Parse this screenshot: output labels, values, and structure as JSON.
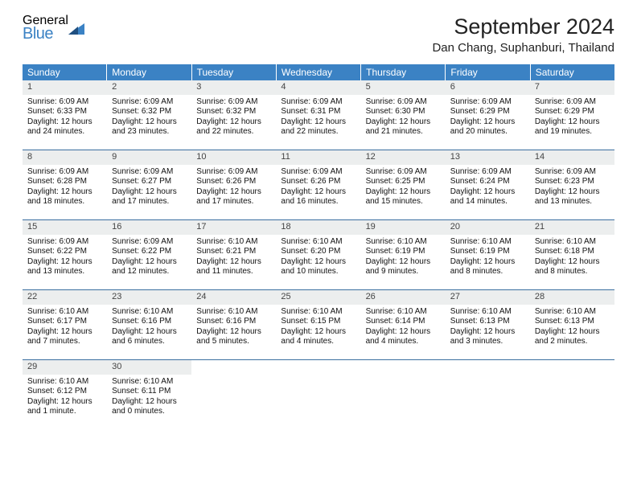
{
  "logo": {
    "general": "General",
    "blue": "Blue",
    "shape_color": "#3b82c4"
  },
  "title": "September 2024",
  "location": "Dan Chang, Suphanburi, Thailand",
  "colors": {
    "header_bg": "#3b82c4",
    "header_text": "#ffffff",
    "daynum_bg": "#eceeee",
    "week_border": "#3b6fa0",
    "body_text": "#111111"
  },
  "typography": {
    "title_fontsize": 27,
    "location_fontsize": 15,
    "dow_fontsize": 12,
    "daynum_fontsize": 11,
    "body_fontsize": 10
  },
  "days_of_week": [
    "Sunday",
    "Monday",
    "Tuesday",
    "Wednesday",
    "Thursday",
    "Friday",
    "Saturday"
  ],
  "weeks": [
    [
      {
        "n": "1",
        "sunrise": "Sunrise: 6:09 AM",
        "sunset": "Sunset: 6:33 PM",
        "day1": "Daylight: 12 hours",
        "day2": "and 24 minutes."
      },
      {
        "n": "2",
        "sunrise": "Sunrise: 6:09 AM",
        "sunset": "Sunset: 6:32 PM",
        "day1": "Daylight: 12 hours",
        "day2": "and 23 minutes."
      },
      {
        "n": "3",
        "sunrise": "Sunrise: 6:09 AM",
        "sunset": "Sunset: 6:32 PM",
        "day1": "Daylight: 12 hours",
        "day2": "and 22 minutes."
      },
      {
        "n": "4",
        "sunrise": "Sunrise: 6:09 AM",
        "sunset": "Sunset: 6:31 PM",
        "day1": "Daylight: 12 hours",
        "day2": "and 22 minutes."
      },
      {
        "n": "5",
        "sunrise": "Sunrise: 6:09 AM",
        "sunset": "Sunset: 6:30 PM",
        "day1": "Daylight: 12 hours",
        "day2": "and 21 minutes."
      },
      {
        "n": "6",
        "sunrise": "Sunrise: 6:09 AM",
        "sunset": "Sunset: 6:29 PM",
        "day1": "Daylight: 12 hours",
        "day2": "and 20 minutes."
      },
      {
        "n": "7",
        "sunrise": "Sunrise: 6:09 AM",
        "sunset": "Sunset: 6:29 PM",
        "day1": "Daylight: 12 hours",
        "day2": "and 19 minutes."
      }
    ],
    [
      {
        "n": "8",
        "sunrise": "Sunrise: 6:09 AM",
        "sunset": "Sunset: 6:28 PM",
        "day1": "Daylight: 12 hours",
        "day2": "and 18 minutes."
      },
      {
        "n": "9",
        "sunrise": "Sunrise: 6:09 AM",
        "sunset": "Sunset: 6:27 PM",
        "day1": "Daylight: 12 hours",
        "day2": "and 17 minutes."
      },
      {
        "n": "10",
        "sunrise": "Sunrise: 6:09 AM",
        "sunset": "Sunset: 6:26 PM",
        "day1": "Daylight: 12 hours",
        "day2": "and 17 minutes."
      },
      {
        "n": "11",
        "sunrise": "Sunrise: 6:09 AM",
        "sunset": "Sunset: 6:26 PM",
        "day1": "Daylight: 12 hours",
        "day2": "and 16 minutes."
      },
      {
        "n": "12",
        "sunrise": "Sunrise: 6:09 AM",
        "sunset": "Sunset: 6:25 PM",
        "day1": "Daylight: 12 hours",
        "day2": "and 15 minutes."
      },
      {
        "n": "13",
        "sunrise": "Sunrise: 6:09 AM",
        "sunset": "Sunset: 6:24 PM",
        "day1": "Daylight: 12 hours",
        "day2": "and 14 minutes."
      },
      {
        "n": "14",
        "sunrise": "Sunrise: 6:09 AM",
        "sunset": "Sunset: 6:23 PM",
        "day1": "Daylight: 12 hours",
        "day2": "and 13 minutes."
      }
    ],
    [
      {
        "n": "15",
        "sunrise": "Sunrise: 6:09 AM",
        "sunset": "Sunset: 6:22 PM",
        "day1": "Daylight: 12 hours",
        "day2": "and 13 minutes."
      },
      {
        "n": "16",
        "sunrise": "Sunrise: 6:09 AM",
        "sunset": "Sunset: 6:22 PM",
        "day1": "Daylight: 12 hours",
        "day2": "and 12 minutes."
      },
      {
        "n": "17",
        "sunrise": "Sunrise: 6:10 AM",
        "sunset": "Sunset: 6:21 PM",
        "day1": "Daylight: 12 hours",
        "day2": "and 11 minutes."
      },
      {
        "n": "18",
        "sunrise": "Sunrise: 6:10 AM",
        "sunset": "Sunset: 6:20 PM",
        "day1": "Daylight: 12 hours",
        "day2": "and 10 minutes."
      },
      {
        "n": "19",
        "sunrise": "Sunrise: 6:10 AM",
        "sunset": "Sunset: 6:19 PM",
        "day1": "Daylight: 12 hours",
        "day2": "and 9 minutes."
      },
      {
        "n": "20",
        "sunrise": "Sunrise: 6:10 AM",
        "sunset": "Sunset: 6:19 PM",
        "day1": "Daylight: 12 hours",
        "day2": "and 8 minutes."
      },
      {
        "n": "21",
        "sunrise": "Sunrise: 6:10 AM",
        "sunset": "Sunset: 6:18 PM",
        "day1": "Daylight: 12 hours",
        "day2": "and 8 minutes."
      }
    ],
    [
      {
        "n": "22",
        "sunrise": "Sunrise: 6:10 AM",
        "sunset": "Sunset: 6:17 PM",
        "day1": "Daylight: 12 hours",
        "day2": "and 7 minutes."
      },
      {
        "n": "23",
        "sunrise": "Sunrise: 6:10 AM",
        "sunset": "Sunset: 6:16 PM",
        "day1": "Daylight: 12 hours",
        "day2": "and 6 minutes."
      },
      {
        "n": "24",
        "sunrise": "Sunrise: 6:10 AM",
        "sunset": "Sunset: 6:16 PM",
        "day1": "Daylight: 12 hours",
        "day2": "and 5 minutes."
      },
      {
        "n": "25",
        "sunrise": "Sunrise: 6:10 AM",
        "sunset": "Sunset: 6:15 PM",
        "day1": "Daylight: 12 hours",
        "day2": "and 4 minutes."
      },
      {
        "n": "26",
        "sunrise": "Sunrise: 6:10 AM",
        "sunset": "Sunset: 6:14 PM",
        "day1": "Daylight: 12 hours",
        "day2": "and 4 minutes."
      },
      {
        "n": "27",
        "sunrise": "Sunrise: 6:10 AM",
        "sunset": "Sunset: 6:13 PM",
        "day1": "Daylight: 12 hours",
        "day2": "and 3 minutes."
      },
      {
        "n": "28",
        "sunrise": "Sunrise: 6:10 AM",
        "sunset": "Sunset: 6:13 PM",
        "day1": "Daylight: 12 hours",
        "day2": "and 2 minutes."
      }
    ],
    [
      {
        "n": "29",
        "sunrise": "Sunrise: 6:10 AM",
        "sunset": "Sunset: 6:12 PM",
        "day1": "Daylight: 12 hours",
        "day2": "and 1 minute."
      },
      {
        "n": "30",
        "sunrise": "Sunrise: 6:10 AM",
        "sunset": "Sunset: 6:11 PM",
        "day1": "Daylight: 12 hours",
        "day2": "and 0 minutes."
      },
      {
        "empty": true
      },
      {
        "empty": true
      },
      {
        "empty": true
      },
      {
        "empty": true
      },
      {
        "empty": true
      }
    ]
  ]
}
